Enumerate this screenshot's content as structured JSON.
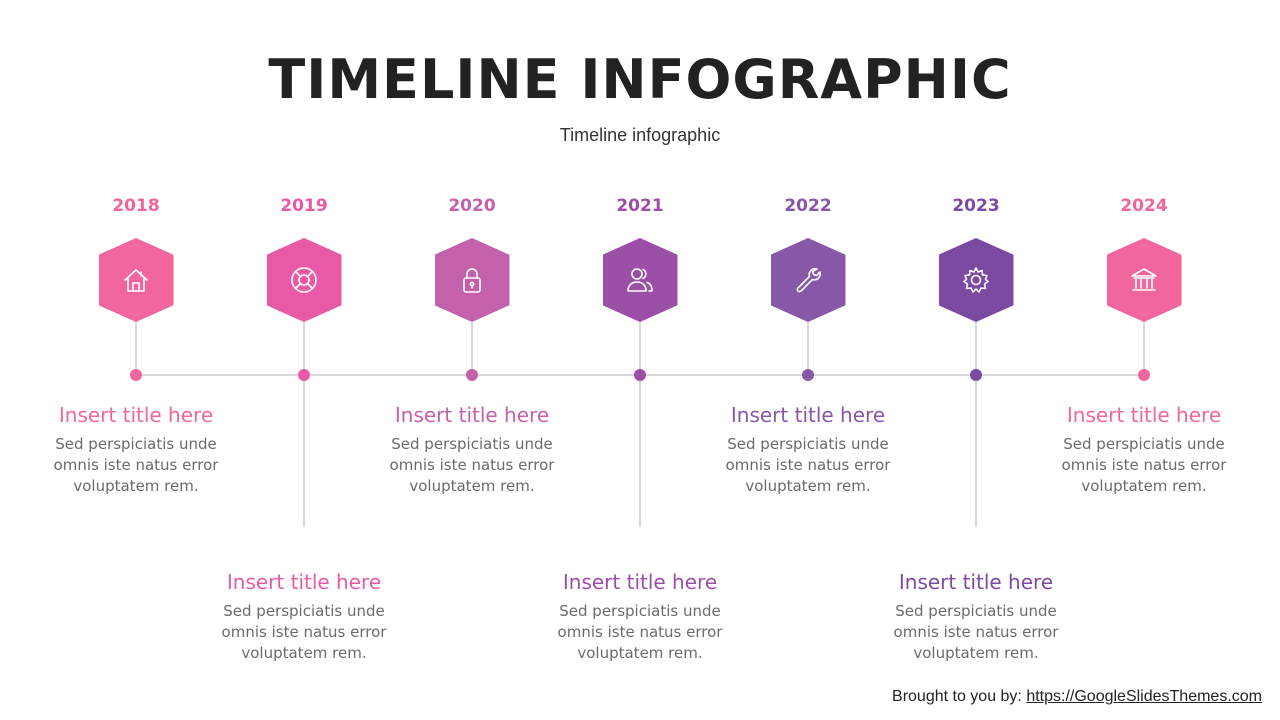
{
  "header": {
    "title": "TIMELINE INFOGRAPHIC",
    "subtitle": "Timeline infographic"
  },
  "colors": {
    "line": "#cccccc",
    "body_text": "#6b6b6b"
  },
  "milestones": [
    {
      "year": "2018",
      "icon": "home-icon",
      "color": "#f0669d",
      "title": "Insert title here",
      "body": "Sed perspiciatis unde omnis iste natus error voluptatem rem."
    },
    {
      "year": "2019",
      "icon": "lifebuoy-icon",
      "color": "#e85aa5",
      "title": "Insert title here",
      "body": "Sed perspiciatis unde omnis iste natus error voluptatem rem."
    },
    {
      "year": "2020",
      "icon": "lock-icon",
      "color": "#c361ab",
      "title": "Insert title here",
      "body": "Sed perspiciatis unde omnis iste natus error voluptatem rem."
    },
    {
      "year": "2021",
      "icon": "users-icon",
      "color": "#9c4fa6",
      "title": "Insert title here",
      "body": "Sed perspiciatis unde omnis iste natus error voluptatem rem."
    },
    {
      "year": "2022",
      "icon": "wrench-icon",
      "color": "#8757a8",
      "title": "Insert title here",
      "body": "Sed perspiciatis unde omnis iste natus error voluptatem rem."
    },
    {
      "year": "2023",
      "icon": "gear-icon",
      "color": "#7b4aa3",
      "title": "Insert title here",
      "body": "Sed perspiciatis unde omnis iste natus error voluptatem rem."
    },
    {
      "year": "2024",
      "icon": "bank-icon",
      "color": "#f0669d",
      "title": "Insert title here",
      "body": "Sed perspiciatis unde omnis iste natus error voluptatem rem."
    }
  ],
  "footer": {
    "prefix": "Brought to you by: ",
    "link": "https://GoogleSlidesThemes.com"
  }
}
